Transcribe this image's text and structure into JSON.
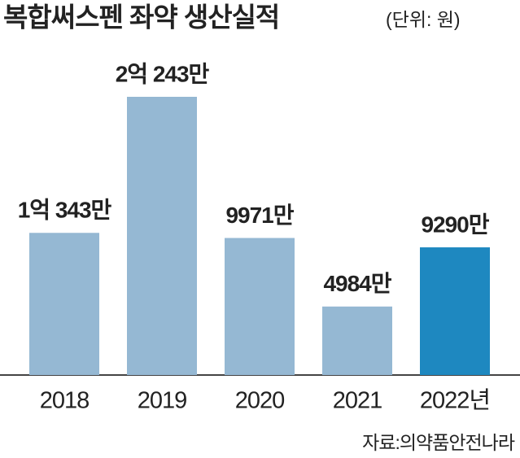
{
  "chart_data": {
    "type": "bar",
    "title": "복합써스펜 좌약 생산실적",
    "subtitle": "(단위: 원)",
    "categories": [
      "2018",
      "2019",
      "2020",
      "2021",
      "2022년"
    ],
    "values": [
      103430000,
      202430000,
      99710000,
      49840000,
      92900000
    ],
    "value_labels": [
      "1억 343만",
      "2억 243만",
      "9971만",
      "4984만",
      "9290만"
    ],
    "colors": [
      "#95b8d3",
      "#95b8d3",
      "#95b8d3",
      "#95b8d3",
      "#1e88c0"
    ],
    "source": "자료:의약품안전나라"
  }
}
